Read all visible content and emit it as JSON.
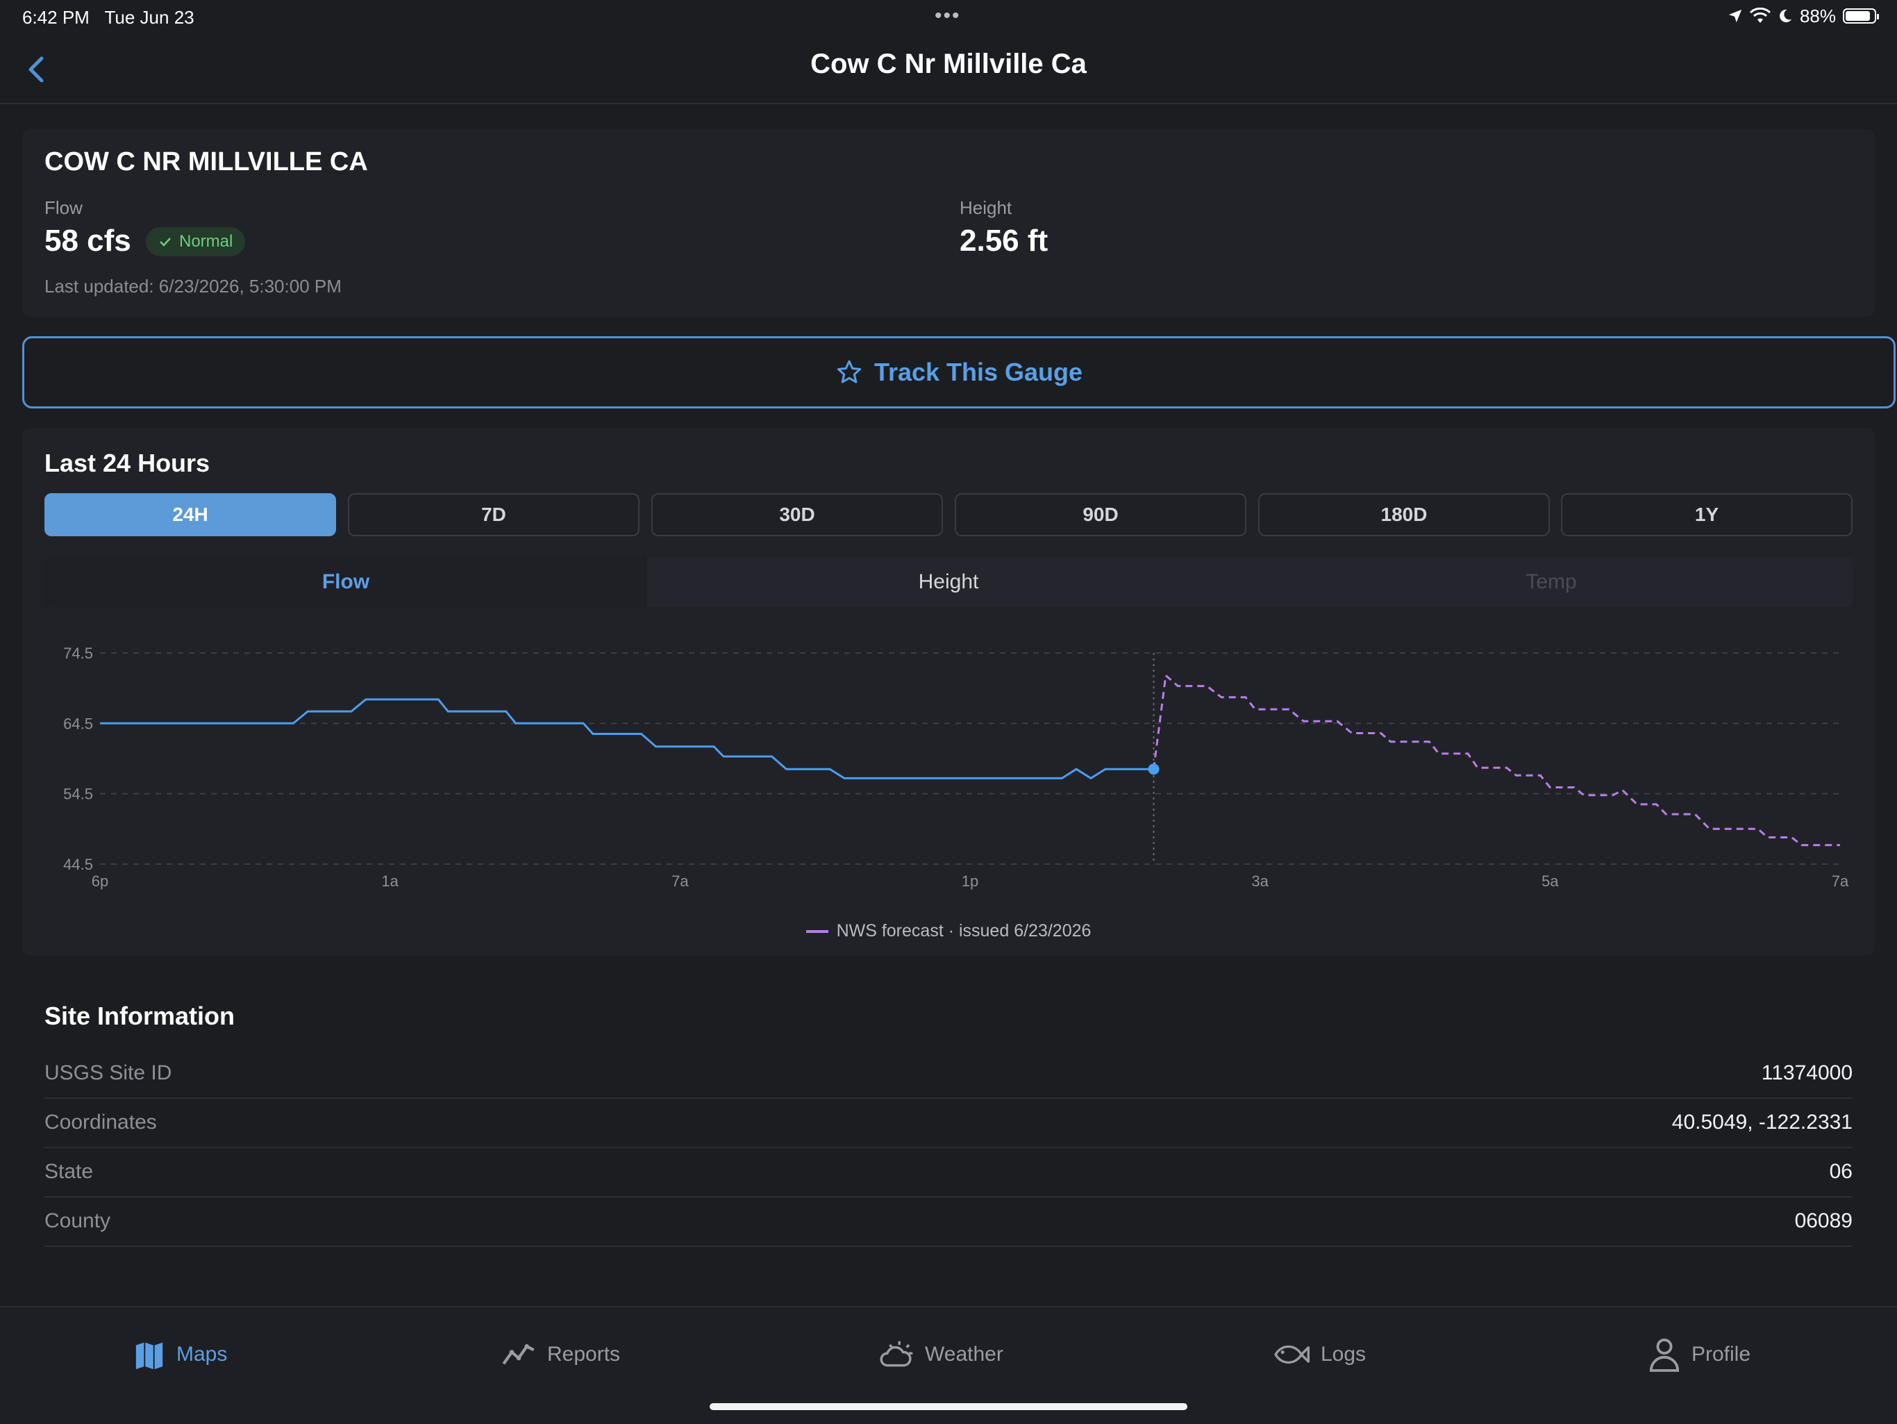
{
  "status_bar": {
    "time": "6:42 PM",
    "date": "Tue Jun 23",
    "dots": "•••",
    "battery": "88%",
    "battery_level": 0.88
  },
  "nav": {
    "title": "Cow C Nr Millville Ca"
  },
  "gauge": {
    "name": "COW C NR MILLVILLE CA",
    "flow_label": "Flow",
    "flow_value": "58 cfs",
    "status": "Normal",
    "height_label": "Height",
    "height_value": "2.56 ft",
    "updated": "Last updated: 6/23/2026, 5:30:00 PM"
  },
  "track_button": {
    "label": "Track This Gauge"
  },
  "chart_section": {
    "title": "Last 24 Hours",
    "ranges": [
      "24H",
      "7D",
      "30D",
      "90D",
      "180D",
      "1Y"
    ],
    "active_range": "24H",
    "metrics": [
      "Flow",
      "Height",
      "Temp"
    ],
    "active_metric": "Flow"
  },
  "chart_data": {
    "type": "line",
    "x_ticks": [
      "6p",
      "1a",
      "7a",
      "1p",
      "3a",
      "5a",
      "7a"
    ],
    "y_ticks": [
      "74.5",
      "64.5",
      "54.5",
      "44.5"
    ],
    "ylim": [
      44.5,
      74.5
    ],
    "xlim": [
      0,
      36
    ],
    "grid": true,
    "colors": {
      "observed": "#4a9ef0",
      "forecast": "#b57fe8"
    },
    "series": [
      {
        "values": [
          [
            0,
            64.5
          ],
          [
            4,
            64.5
          ],
          [
            4.3,
            66.2
          ],
          [
            5.2,
            66.2
          ],
          [
            5.5,
            67.9
          ],
          [
            7,
            67.9
          ],
          [
            7.2,
            66.2
          ],
          [
            8.4,
            66.2
          ],
          [
            8.6,
            64.5
          ],
          [
            10,
            64.5
          ],
          [
            10.2,
            63.0
          ],
          [
            11.2,
            63.0
          ],
          [
            11.5,
            61.2
          ],
          [
            12.7,
            61.2
          ],
          [
            12.9,
            59.8
          ],
          [
            13.9,
            59.8
          ],
          [
            14.2,
            58.0
          ],
          [
            15.1,
            58.0
          ],
          [
            15.4,
            56.7
          ],
          [
            19.9,
            56.7
          ],
          [
            20.2,
            58.0
          ],
          [
            20.5,
            56.7
          ],
          [
            20.8,
            58.0
          ],
          [
            21.8,
            58.0
          ]
        ]
      },
      {
        "name": "NWS forecast · issued 6/23/2026",
        "values": [
          [
            21.8,
            58.0
          ],
          [
            22.05,
            71.3
          ],
          [
            22.3,
            69.8
          ],
          [
            22.9,
            69.8
          ],
          [
            23.2,
            68.2
          ],
          [
            23.7,
            68.2
          ],
          [
            23.9,
            66.5
          ],
          [
            24.6,
            66.5
          ],
          [
            24.9,
            64.8
          ],
          [
            25.6,
            64.8
          ],
          [
            25.9,
            63.1
          ],
          [
            26.5,
            63.1
          ],
          [
            26.7,
            61.9
          ],
          [
            27.5,
            61.9
          ],
          [
            27.7,
            60.2
          ],
          [
            28.3,
            60.2
          ],
          [
            28.5,
            58.2
          ],
          [
            29.1,
            58.2
          ],
          [
            29.3,
            57.1
          ],
          [
            29.8,
            57.1
          ],
          [
            30.0,
            55.4
          ],
          [
            30.5,
            55.4
          ],
          [
            30.7,
            54.3
          ],
          [
            31.3,
            54.3
          ],
          [
            31.5,
            55.0
          ],
          [
            31.8,
            53.0
          ],
          [
            32.2,
            53.0
          ],
          [
            32.4,
            51.6
          ],
          [
            33.0,
            51.6
          ],
          [
            33.3,
            49.5
          ],
          [
            34.3,
            49.5
          ],
          [
            34.5,
            48.3
          ],
          [
            35.0,
            48.3
          ],
          [
            35.2,
            47.2
          ],
          [
            36.0,
            47.2
          ]
        ]
      }
    ],
    "legend": "NWS forecast · issued 6/23/2026",
    "legend_placement": "bottom-center"
  },
  "site_info": {
    "title": "Site Information",
    "rows": [
      {
        "label": "USGS Site ID",
        "value": "11374000"
      },
      {
        "label": "Coordinates",
        "value": "40.5049, -122.2331"
      },
      {
        "label": "State",
        "value": "06"
      },
      {
        "label": "County",
        "value": "06089"
      }
    ]
  },
  "tabs": [
    {
      "label": "Maps",
      "icon": "map-icon",
      "active": true
    },
    {
      "label": "Reports",
      "icon": "reports-icon",
      "active": false
    },
    {
      "label": "Weather",
      "icon": "weather-icon",
      "active": false
    },
    {
      "label": "Logs",
      "icon": "fish-icon",
      "active": false
    },
    {
      "label": "Profile",
      "icon": "profile-icon",
      "active": false
    }
  ]
}
